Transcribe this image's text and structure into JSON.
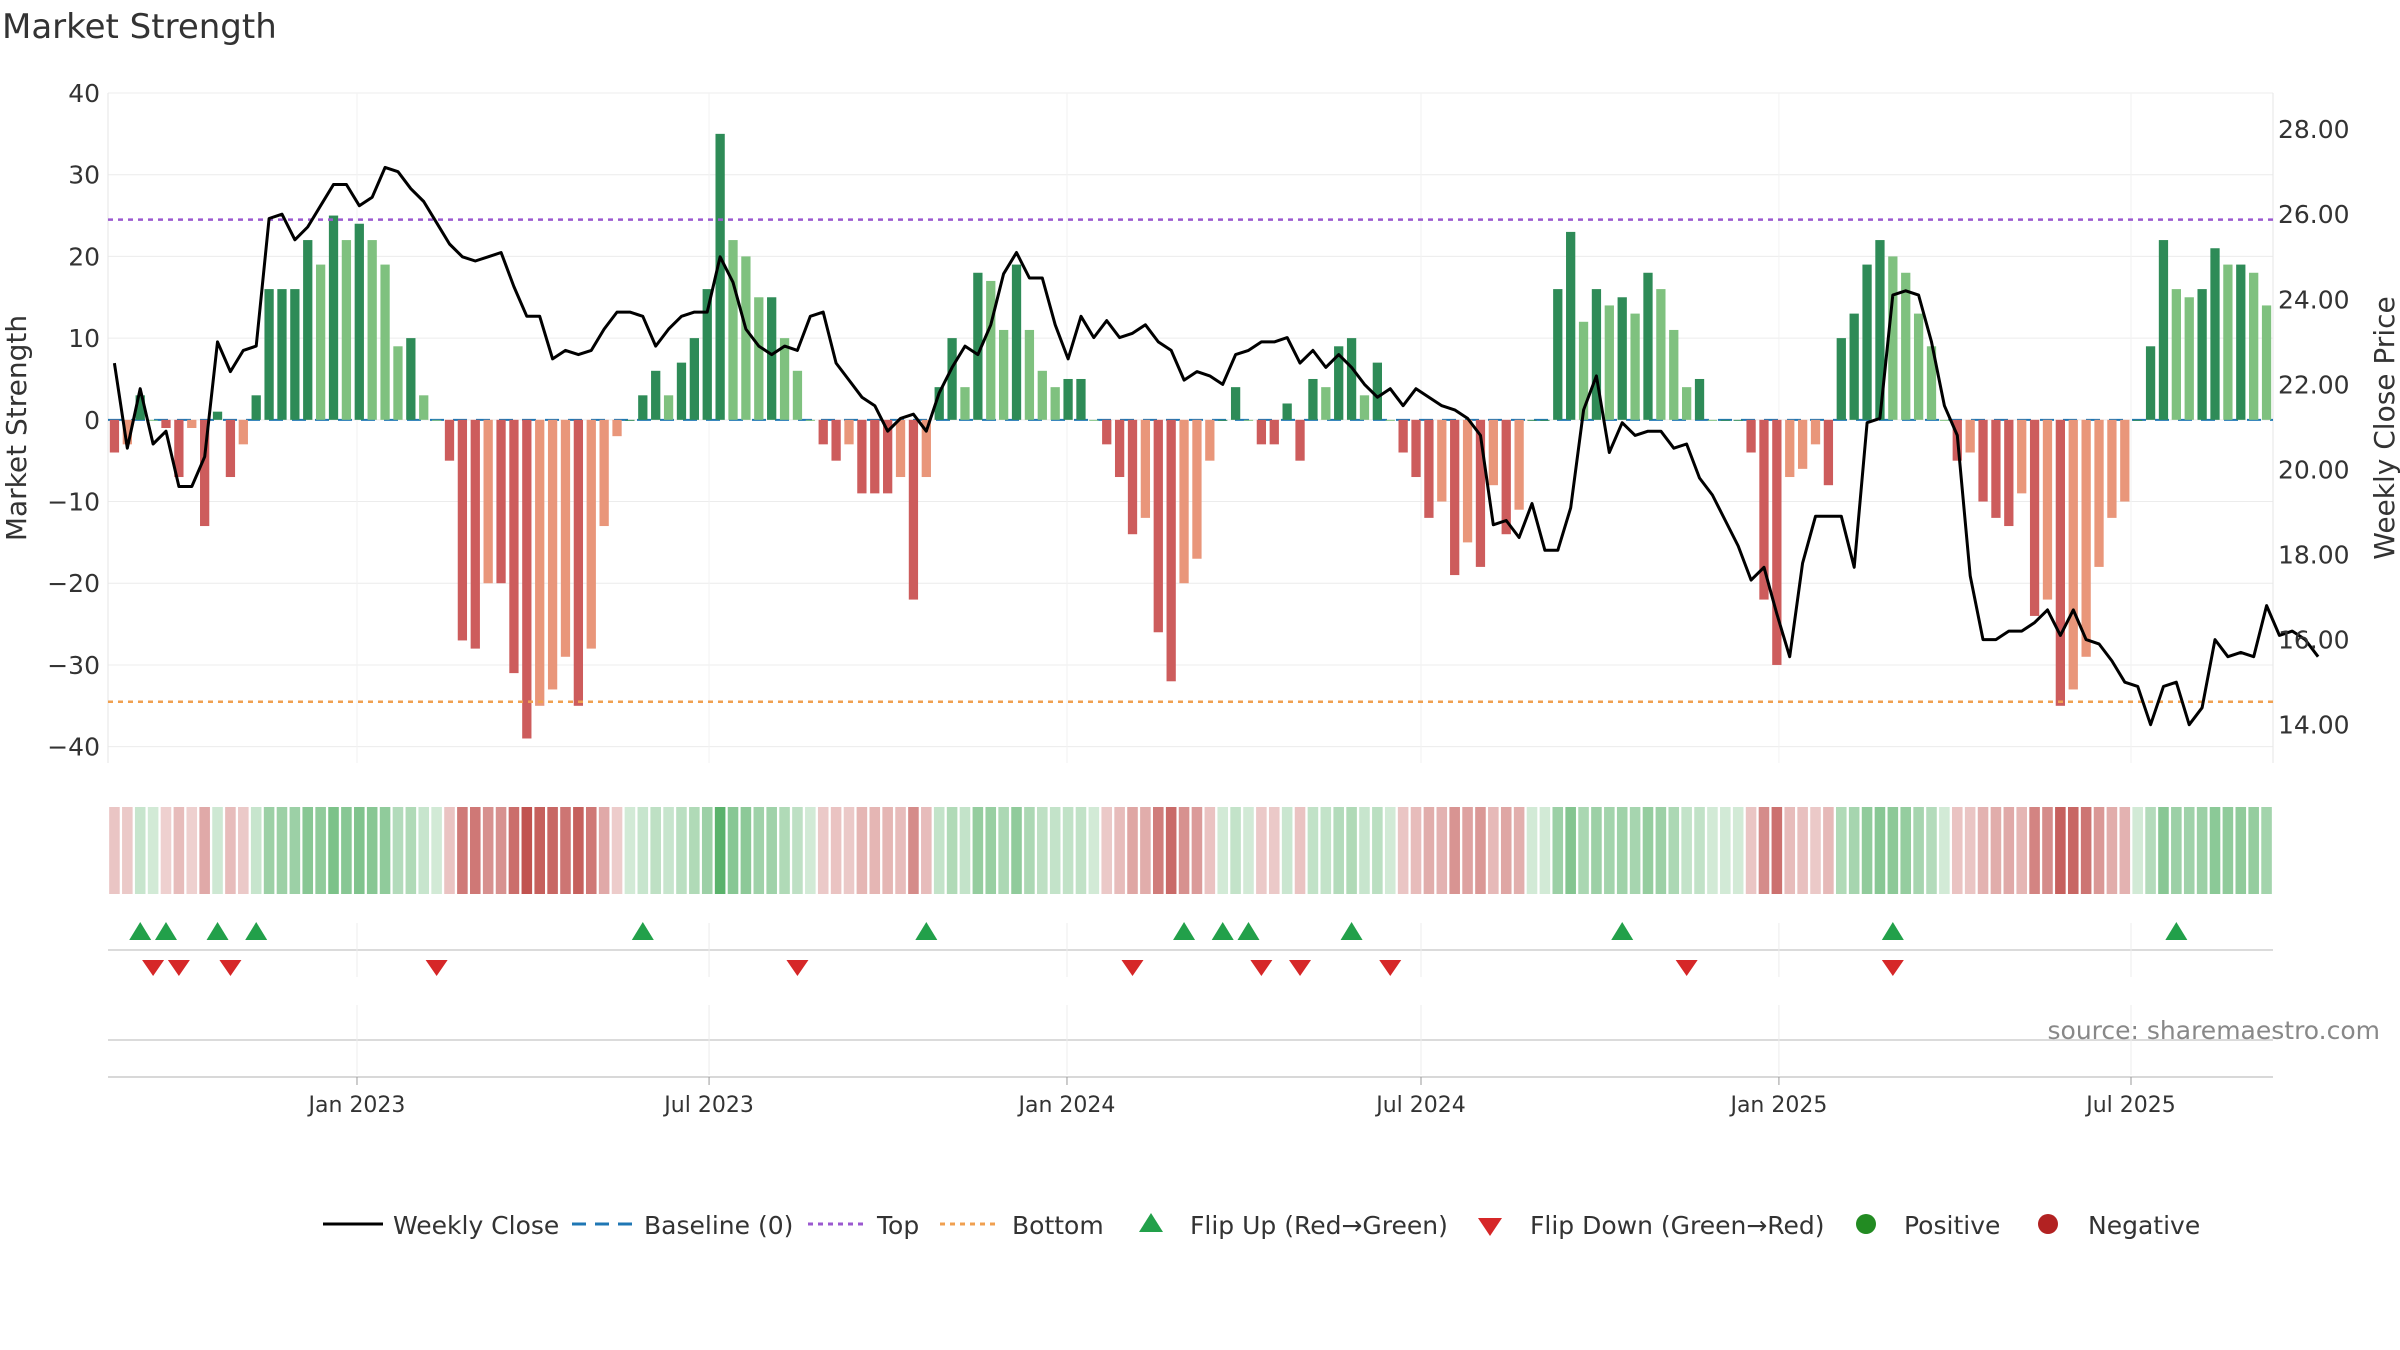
{
  "colors": {
    "positive_dark": "#2e8b57",
    "positive_light": "#7fc17f",
    "negative_dark": "#cd5c5c",
    "negative_light": "#e9967a",
    "close_line": "#000000",
    "baseline": "#1f77b4",
    "top": "#9b59d0",
    "bottom": "#f0a050",
    "flip_up": "#22a04a",
    "flip_down": "#d62728",
    "legend_positive": "#228b22",
    "legend_negative": "#b22222",
    "grid": "#ececec",
    "text": "#333333",
    "source_text": "#888888"
  },
  "chart_data": {
    "type": "bar+line",
    "title": "Market Strength",
    "ylabel_left": "Market Strength",
    "ylabel_right": "Weekly Close Price",
    "ylim_left": [
      -42,
      40
    ],
    "yticks_left": [
      "40",
      "30",
      "20",
      "10",
      "0",
      "−10",
      "−20",
      "−30",
      "−40"
    ],
    "ytick_values_left": [
      40,
      30,
      20,
      10,
      0,
      -10,
      -20,
      -30,
      -40
    ],
    "ylim_right": [
      13.1,
      28.85
    ],
    "yticks_right": [
      "28.00",
      "26.00",
      "24.00",
      "22.00",
      "20.00",
      "18.00",
      "16.00",
      "14.00"
    ],
    "ytick_values_right": [
      28,
      26,
      24,
      22,
      20,
      18,
      16,
      14
    ],
    "x_start": "2022-08-26",
    "x_end": "2025-09-12",
    "x_ticks": [
      {
        "label": "Jan 2023",
        "date": "2023-01-01"
      },
      {
        "label": "Jul 2023",
        "date": "2023-07-01"
      },
      {
        "label": "Jan 2024",
        "date": "2024-01-01"
      },
      {
        "label": "Jul 2024",
        "date": "2024-07-01"
      },
      {
        "label": "Jan 2025",
        "date": "2025-01-01"
      },
      {
        "label": "Jul 2025",
        "date": "2025-07-01"
      }
    ],
    "top_line": 24.5,
    "bottom_line": -34.5,
    "baseline": 0,
    "strength": [
      -4,
      -3,
      3,
      0,
      -1,
      -7,
      -1,
      -13,
      1,
      -7,
      -3,
      3,
      16,
      16,
      16,
      22,
      19,
      25,
      22,
      24,
      22,
      19,
      9,
      10,
      3,
      0,
      -5,
      -27,
      -28,
      -20,
      -20,
      -31,
      -39,
      -35,
      -33,
      -29,
      -35,
      -28,
      -13,
      -2,
      0,
      3,
      6,
      3,
      7,
      10,
      16,
      35,
      22,
      20,
      15,
      15,
      10,
      6,
      0,
      -3,
      -5,
      -3,
      -9,
      -9,
      -9,
      -7,
      -22,
      -7,
      4,
      10,
      4,
      18,
      17,
      11,
      19,
      11,
      6,
      4,
      5,
      5,
      0,
      -3,
      -7,
      -14,
      -12,
      -26,
      -32,
      -20,
      -17,
      -5,
      0,
      4,
      0,
      -3,
      -3,
      2,
      -5,
      5,
      4,
      9,
      10,
      3,
      7,
      0,
      -4,
      -7,
      -12,
      -10,
      -19,
      -15,
      -18,
      -8,
      -14,
      -11,
      0,
      0,
      16,
      23,
      12,
      16,
      14,
      15,
      13,
      18,
      16,
      11,
      4,
      5,
      0,
      0,
      0,
      -4,
      -22,
      -30,
      -7,
      -6,
      -3,
      -8,
      10,
      13,
      19,
      22,
      20,
      18,
      13,
      9,
      0,
      -5,
      -4,
      -10,
      -12,
      -13,
      -9,
      -24,
      -22,
      -35,
      -33,
      -29,
      -18,
      -12,
      -10,
      0,
      9,
      22,
      16,
      15,
      16,
      21,
      19,
      19,
      18,
      14
    ],
    "weekly_close": [
      22.5,
      20.5,
      21.9,
      20.6,
      20.9,
      19.6,
      19.6,
      20.3,
      23.0,
      22.3,
      22.8,
      22.9,
      25.9,
      26.0,
      25.4,
      25.7,
      26.2,
      26.7,
      26.7,
      26.2,
      26.4,
      27.1,
      27.0,
      26.6,
      26.3,
      25.8,
      25.3,
      25.0,
      24.9,
      25.0,
      25.1,
      24.3,
      23.6,
      23.6,
      22.6,
      22.8,
      22.7,
      22.8,
      23.3,
      23.7,
      23.7,
      23.6,
      22.9,
      23.3,
      23.6,
      23.7,
      23.7,
      25.0,
      24.4,
      23.3,
      22.9,
      22.7,
      22.9,
      22.8,
      23.6,
      23.7,
      22.5,
      22.1,
      21.7,
      21.5,
      20.9,
      21.2,
      21.3,
      20.9,
      21.8,
      22.4,
      22.9,
      22.7,
      23.4,
      24.6,
      25.1,
      24.5,
      24.5,
      23.4,
      22.6,
      23.6,
      23.1,
      23.5,
      23.1,
      23.2,
      23.4,
      23.0,
      22.8,
      22.1,
      22.3,
      22.2,
      22.0,
      22.7,
      22.8,
      23.0,
      23.0,
      23.1,
      22.5,
      22.8,
      22.4,
      22.7,
      22.4,
      22.0,
      21.7,
      21.9,
      21.5,
      21.9,
      21.7,
      21.5,
      21.4,
      21.2,
      20.8,
      18.7,
      18.8,
      18.4,
      19.2,
      18.1,
      18.1,
      19.1,
      21.4,
      22.2,
      20.4,
      21.1,
      20.8,
      20.9,
      20.9,
      20.5,
      20.6,
      19.8,
      19.4,
      18.8,
      18.2,
      17.4,
      17.7,
      16.6,
      15.6,
      17.8,
      18.9,
      18.9,
      18.9,
      17.7,
      21.1,
      21.2,
      24.1,
      24.2,
      24.1,
      23.0,
      21.5,
      20.8,
      17.5,
      16.0,
      16.0,
      16.2,
      16.2,
      16.4,
      16.7,
      16.1,
      16.7,
      16.0,
      15.9,
      15.5,
      15.0,
      14.9,
      14.0,
      14.9,
      15.0,
      14.0,
      14.4,
      16.0,
      15.6,
      15.7,
      15.6,
      16.8,
      16.1,
      16.2,
      16.0,
      15.6
    ],
    "flip_up_weeks": [
      2,
      4,
      8,
      11,
      41,
      63,
      83,
      86,
      88,
      96,
      117,
      138,
      160
    ],
    "flip_down_weeks": [
      3,
      5,
      9,
      25,
      53,
      79,
      89,
      92,
      99,
      122,
      138
    ]
  },
  "legend": {
    "weekly_close": "Weekly Close",
    "baseline": "Baseline (0)",
    "top": "Top",
    "bottom": "Bottom",
    "flip_up": "Flip Up (Red→Green)",
    "flip_down": "Flip Down (Green→Red)",
    "positive": "Positive",
    "negative": "Negative"
  },
  "source": "source: sharemaestro.com"
}
